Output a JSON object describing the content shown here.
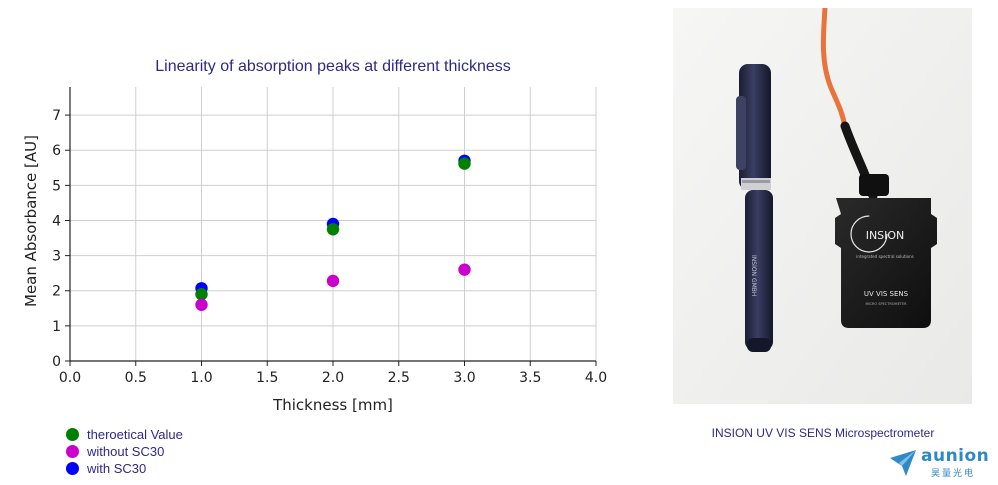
{
  "chart_data": {
    "type": "scatter",
    "title": "Linearity of absorption peaks at different thickness",
    "xlabel": "Thickness [mm]",
    "ylabel": "Mean Absorbance [AU]",
    "xlim": [
      0,
      4
    ],
    "ylim": [
      0,
      7.8
    ],
    "xticks": [
      0.0,
      0.5,
      1.0,
      1.5,
      2.0,
      2.5,
      3.0,
      3.5,
      4.0
    ],
    "xtick_labels": [
      "0.0",
      "0.5",
      "1.0",
      "1.5",
      "2.0",
      "2.5",
      "3.0",
      "3.5",
      "4.0"
    ],
    "yticks": [
      0,
      1,
      2,
      3,
      4,
      5,
      6,
      7
    ],
    "ytick_labels": [
      "0",
      "1",
      "2",
      "3",
      "4",
      "5",
      "6",
      "7"
    ],
    "grid": true,
    "legend_position": "below-left",
    "series": [
      {
        "name": "with SC30",
        "color": "#0000ff",
        "x": [
          1.0,
          2.0,
          3.0
        ],
        "y": [
          2.07,
          3.9,
          5.7
        ]
      },
      {
        "name": "theroetical Value",
        "color": "#008000",
        "x": [
          1.0,
          2.0,
          3.0
        ],
        "y": [
          1.9,
          3.75,
          5.62
        ]
      },
      {
        "name": "without SC30",
        "color": "#cc00cc",
        "x": [
          1.0,
          2.0,
          3.0
        ],
        "y": [
          1.6,
          2.28,
          2.6
        ]
      }
    ],
    "legend_order": [
      1,
      2,
      0
    ]
  },
  "photo": {
    "caption": "INSION UV VIS SENS Microspectrometer",
    "device_brand": "INSION",
    "device_tagline": "integrated spectral solutions",
    "device_model": "UV VIS SENS",
    "device_sub": "MICRO SPECTROMETER",
    "pen_text": "INSION GMBH"
  },
  "logo": {
    "name": "aunion",
    "sub": "昊量光电",
    "color": "#2f89c6"
  }
}
